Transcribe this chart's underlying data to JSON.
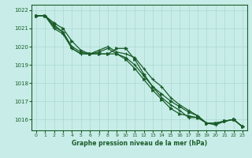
{
  "title": "Graphe pression niveau de la mer (hPa)",
  "xlabel": "Graphe pression niveau de la mer (hPa)",
  "background_color": "#c8ede8",
  "grid_color": "#aad8d0",
  "line_color": "#1a5c2a",
  "x_ticks": [
    0,
    1,
    2,
    3,
    4,
    5,
    6,
    7,
    8,
    9,
    10,
    11,
    12,
    13,
    14,
    15,
    16,
    17,
    18,
    19,
    20,
    21,
    22,
    23
  ],
  "ylim": [
    1015.4,
    1022.3
  ],
  "yticks": [
    1016,
    1017,
    1018,
    1019,
    1020,
    1021,
    1022
  ],
  "series": [
    [
      1021.7,
      1021.7,
      1021.3,
      1021.0,
      1020.3,
      1019.8,
      1019.6,
      1019.6,
      1019.6,
      1019.6,
      1019.3,
      1018.8,
      1018.2,
      1017.6,
      1017.1,
      1016.6,
      1016.3,
      1016.2,
      1016.1,
      1015.8,
      1015.8,
      1015.9,
      1016.0,
      1015.6
    ],
    [
      1021.7,
      1021.7,
      1021.2,
      1020.8,
      1020.0,
      1019.7,
      1019.6,
      1019.6,
      1019.6,
      1019.9,
      1019.9,
      1019.3,
      1018.5,
      1017.8,
      1017.4,
      1017.0,
      1016.7,
      1016.4,
      1016.2,
      1015.8,
      1015.8,
      1015.9,
      1016.0,
      1015.6
    ],
    [
      1021.7,
      1021.7,
      1021.1,
      1020.8,
      1019.9,
      1019.6,
      1019.6,
      1019.8,
      1020.0,
      1019.7,
      1019.6,
      1019.4,
      1018.8,
      1018.2,
      1017.8,
      1017.2,
      1016.8,
      1016.5,
      1016.2,
      1015.8,
      1015.8,
      1015.9,
      1016.0,
      1015.6
    ],
    [
      1021.7,
      1021.7,
      1021.0,
      1020.7,
      1019.9,
      1019.6,
      1019.6,
      1019.7,
      1019.9,
      1019.6,
      1019.4,
      1019.0,
      1018.4,
      1017.8,
      1017.2,
      1016.8,
      1016.5,
      1016.1,
      1016.1,
      1015.8,
      1015.7,
      1015.9,
      1016.0,
      1015.6
    ]
  ],
  "markers": [
    ">",
    ">",
    "+",
    "+"
  ],
  "marker_sizes": [
    2.5,
    2.5,
    3.5,
    3.5
  ]
}
